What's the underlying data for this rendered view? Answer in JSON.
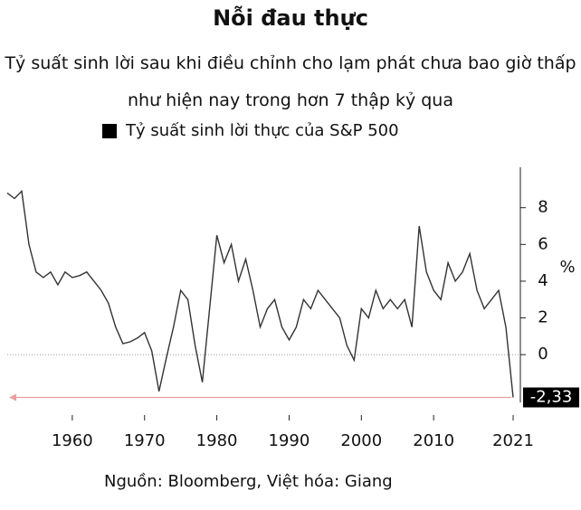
{
  "chart_data": {
    "type": "line",
    "title": "Nỗi đau thực",
    "subtitle": "Tỷ suất sinh lời sau khi điều chỉnh cho lạm phát chưa bao giờ thấp như hiện nay trong hơn 7 thập kỷ qua",
    "source": "Nguồn: Bloomberg, Việt hóa: Giang",
    "y_axis_label": "%",
    "x": [
      1951,
      1952,
      1953,
      1954,
      1955,
      1956,
      1957,
      1958,
      1959,
      1960,
      1961,
      1962,
      1963,
      1964,
      1965,
      1966,
      1967,
      1968,
      1969,
      1970,
      1971,
      1972,
      1973,
      1974,
      1975,
      1976,
      1977,
      1978,
      1979,
      1980,
      1981,
      1982,
      1983,
      1984,
      1985,
      1986,
      1987,
      1988,
      1989,
      1990,
      1991,
      1992,
      1993,
      1994,
      1995,
      1996,
      1997,
      1998,
      1999,
      2000,
      2001,
      2002,
      2003,
      2004,
      2005,
      2006,
      2007,
      2008,
      2009,
      2010,
      2011,
      2012,
      2013,
      2014,
      2015,
      2016,
      2017,
      2018,
      2019,
      2020,
      2021
    ],
    "series": [
      {
        "name": "Tỷ suất sinh lời thực của S&P 500",
        "color": "#333333",
        "values": [
          8.8,
          8.5,
          8.9,
          6.0,
          4.5,
          4.2,
          4.5,
          3.8,
          4.5,
          4.2,
          4.3,
          4.5,
          4.0,
          3.5,
          2.8,
          1.5,
          0.6,
          0.7,
          0.9,
          1.2,
          0.2,
          -2.0,
          -0.2,
          1.5,
          3.5,
          3.0,
          0.5,
          -1.5,
          2.5,
          6.5,
          5.0,
          6.0,
          4.0,
          5.2,
          3.5,
          1.5,
          2.5,
          3.0,
          1.5,
          0.8,
          1.5,
          3.0,
          2.5,
          3.5,
          3.0,
          2.5,
          2.0,
          0.5,
          -0.3,
          2.5,
          2.0,
          3.5,
          2.5,
          3.0,
          2.5,
          3.0,
          1.5,
          7.0,
          4.5,
          3.5,
          3.0,
          5.0,
          4.0,
          4.5,
          5.5,
          3.5,
          2.5,
          3.0,
          3.5,
          1.5,
          -2.33
        ]
      }
    ],
    "annotations": [
      {
        "value": -2.33,
        "label": "-2,33"
      }
    ],
    "xlim": [
      1951,
      2022
    ],
    "xticks": [
      1960,
      1970,
      1980,
      1990,
      2000,
      2010,
      2021
    ],
    "ylim": [
      -2.6,
      10.2
    ],
    "yticks": [
      0,
      2,
      4,
      6,
      8
    ],
    "zero_line": true,
    "legend": "top-left"
  }
}
